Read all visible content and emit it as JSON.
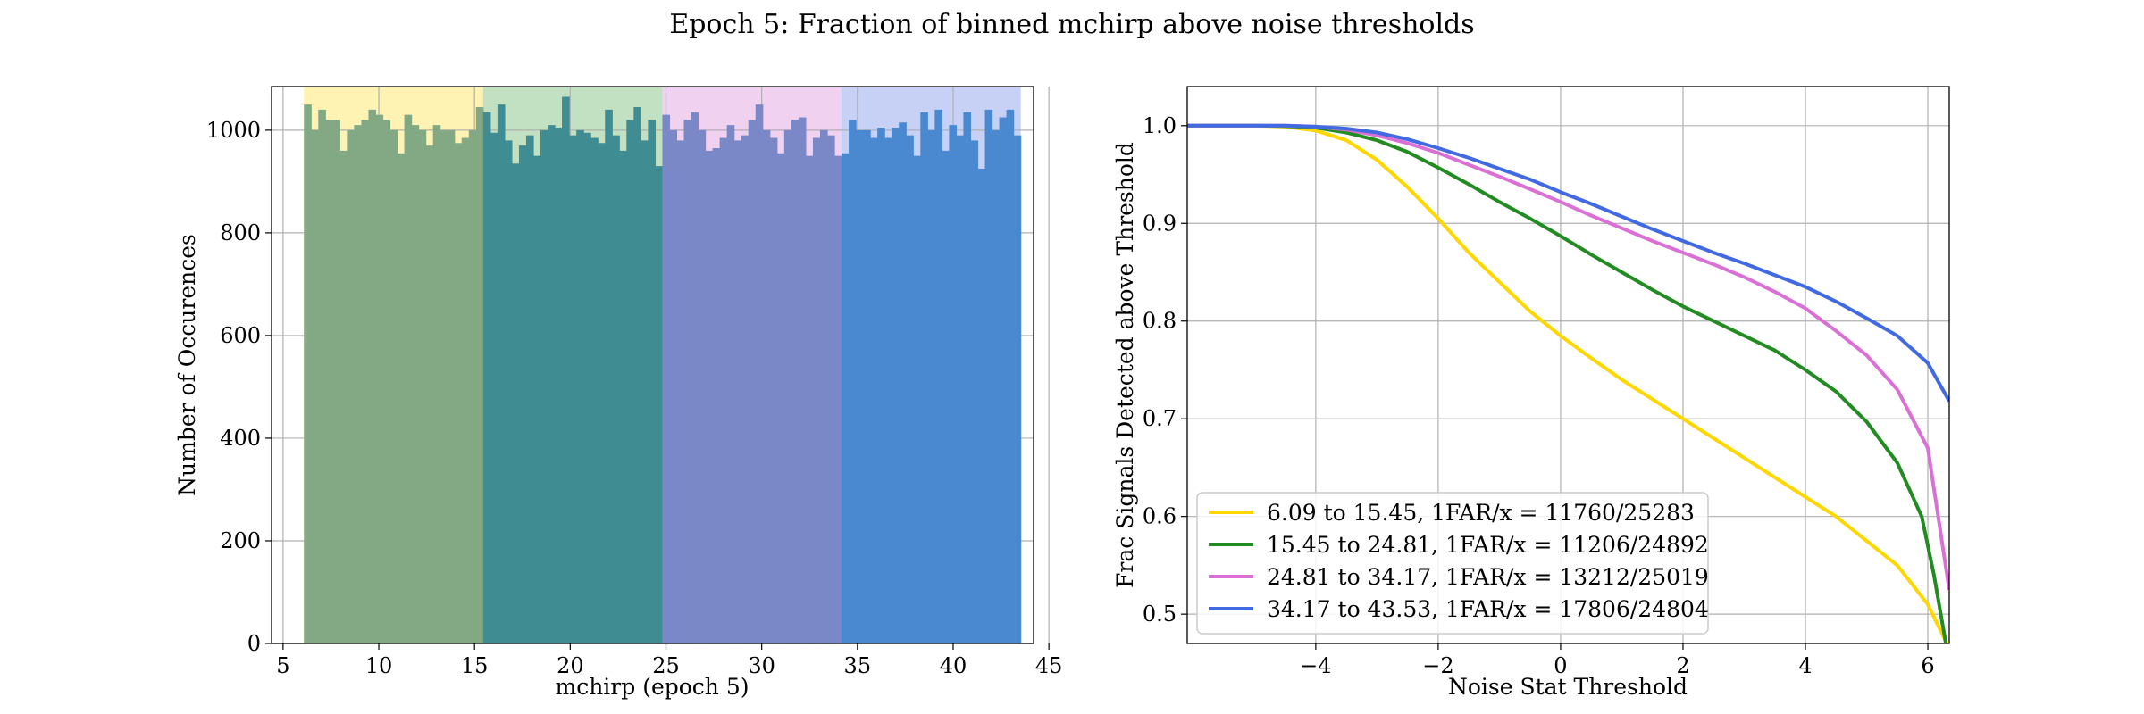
{
  "suptitle": "Epoch 5: Fraction of binned mchirp above noise thresholds",
  "chart_data": [
    {
      "type": "bar",
      "subtype": "histogram",
      "xlabel": "mchirp (epoch 5)",
      "ylabel": "Number of Occurences",
      "xlim": [
        4.4,
        44.2
      ],
      "ylim": [
        0,
        1085
      ],
      "xticks": [
        5,
        10,
        15,
        20,
        25,
        30,
        35,
        40,
        45
      ],
      "yticks": [
        0,
        200,
        400,
        600,
        800,
        1000
      ],
      "grid": true,
      "bin_start": 6.09,
      "bin_width": 0.3744,
      "bin_counts": [
        1050,
        1000,
        1040,
        1020,
        1020,
        960,
        1000,
        1010,
        1020,
        1040,
        1030,
        1020,
        1000,
        955,
        1030,
        1010,
        1000,
        970,
        1010,
        1000,
        1000,
        975,
        985,
        1000,
        1045,
        1035,
        995,
        1050,
        980,
        935,
        970,
        990,
        950,
        1000,
        1010,
        1005,
        1065,
        990,
        1000,
        995,
        985,
        975,
        1040,
        990,
        960,
        1020,
        1045,
        980,
        1020,
        930,
        1030,
        1000,
        980,
        1020,
        1035,
        1000,
        960,
        965,
        985,
        1010,
        980,
        990,
        1020,
        1050,
        1000,
        985,
        955,
        1000,
        1020,
        1025,
        950,
        985,
        1000,
        990,
        950,
        955,
        1020,
        1000,
        1000,
        985,
        1005,
        985,
        1005,
        1015,
        990,
        950,
        1035,
        1000,
        1040,
        960,
        1010,
        990,
        1035,
        980,
        925,
        1040,
        1000,
        1025,
        1040,
        990
      ],
      "groups": [
        {
          "range": [
            6.09,
            15.45
          ],
          "bar_color": "#82a884",
          "band_color": "#fff3b3"
        },
        {
          "range": [
            15.45,
            24.81
          ],
          "bar_color": "#3f8d92",
          "band_color": "#c2e0c2"
        },
        {
          "range": [
            24.81,
            34.17
          ],
          "bar_color": "#7a88c8",
          "band_color": "#f0d2f0"
        },
        {
          "range": [
            34.17,
            43.53
          ],
          "bar_color": "#4a88d0",
          "band_color": "#c7d1f5"
        }
      ]
    },
    {
      "type": "line",
      "xlabel": "Noise Stat Threshold",
      "ylabel": "Frac Signals Detected above Threshold",
      "xlim": [
        -6.1,
        6.35
      ],
      "ylim": [
        0.47,
        1.04
      ],
      "xticks": [
        -4,
        -2,
        0,
        2,
        4,
        6
      ],
      "yticks": [
        0.5,
        0.6,
        0.7,
        0.8,
        0.9,
        1.0
      ],
      "xtick_labels": [
        "−4",
        "−2",
        "0",
        "2",
        "4",
        "6"
      ],
      "ytick_labels": [
        "0.5",
        "0.6",
        "0.7",
        "0.8",
        "0.9",
        "1.0"
      ],
      "grid": true,
      "legend_position": "lower-left",
      "series": [
        {
          "name": "6.09 to 15.45, 1FAR/x = 11760/25283",
          "color": "#ffd700",
          "points": [
            [
              -6.1,
              1.0
            ],
            [
              -5,
              1.0
            ],
            [
              -4.5,
              0.999
            ],
            [
              -4,
              0.995
            ],
            [
              -3.5,
              0.985
            ],
            [
              -3,
              0.965
            ],
            [
              -2.5,
              0.937
            ],
            [
              -2,
              0.905
            ],
            [
              -1.5,
              0.87
            ],
            [
              -1,
              0.84
            ],
            [
              -0.5,
              0.81
            ],
            [
              0,
              0.785
            ],
            [
              0.5,
              0.762
            ],
            [
              1,
              0.74
            ],
            [
              1.5,
              0.72
            ],
            [
              2,
              0.7
            ],
            [
              2.5,
              0.68
            ],
            [
              3,
              0.66
            ],
            [
              3.5,
              0.64
            ],
            [
              4,
              0.62
            ],
            [
              4.5,
              0.6
            ],
            [
              5,
              0.575
            ],
            [
              5.5,
              0.55
            ],
            [
              6,
              0.51
            ],
            [
              6.35,
              0.465
            ]
          ]
        },
        {
          "name": "15.45 to 24.81, 1FAR/x = 11206/24892",
          "color": "#228b22",
          "points": [
            [
              -6.1,
              1.0
            ],
            [
              -5,
              1.0
            ],
            [
              -4.5,
              0.9995
            ],
            [
              -4,
              0.998
            ],
            [
              -3.5,
              0.993
            ],
            [
              -3,
              0.985
            ],
            [
              -2.5,
              0.973
            ],
            [
              -2,
              0.957
            ],
            [
              -1.5,
              0.94
            ],
            [
              -1,
              0.922
            ],
            [
              -0.5,
              0.905
            ],
            [
              0,
              0.887
            ],
            [
              0.5,
              0.868
            ],
            [
              1,
              0.85
            ],
            [
              1.5,
              0.832
            ],
            [
              2,
              0.815
            ],
            [
              2.5,
              0.8
            ],
            [
              3,
              0.785
            ],
            [
              3.5,
              0.77
            ],
            [
              4,
              0.75
            ],
            [
              4.5,
              0.728
            ],
            [
              5,
              0.697
            ],
            [
              5.5,
              0.655
            ],
            [
              5.9,
              0.6
            ],
            [
              6.1,
              0.54
            ],
            [
              6.35,
              0.45
            ]
          ]
        },
        {
          "name": "24.81 to 34.17, 1FAR/x = 13212/25019",
          "color": "#da70d6",
          "points": [
            [
              -6.1,
              1.0
            ],
            [
              -5,
              1.0
            ],
            [
              -4.5,
              1.0
            ],
            [
              -4,
              0.999
            ],
            [
              -3.5,
              0.996
            ],
            [
              -3,
              0.99
            ],
            [
              -2.5,
              0.982
            ],
            [
              -2,
              0.972
            ],
            [
              -1.5,
              0.96
            ],
            [
              -1,
              0.948
            ],
            [
              -0.5,
              0.935
            ],
            [
              0,
              0.922
            ],
            [
              0.5,
              0.908
            ],
            [
              1,
              0.895
            ],
            [
              1.5,
              0.882
            ],
            [
              2,
              0.87
            ],
            [
              2.5,
              0.858
            ],
            [
              3,
              0.845
            ],
            [
              3.5,
              0.83
            ],
            [
              4,
              0.813
            ],
            [
              4.5,
              0.79
            ],
            [
              5,
              0.765
            ],
            [
              5.5,
              0.73
            ],
            [
              6,
              0.67
            ],
            [
              6.35,
              0.525
            ]
          ]
        },
        {
          "name": "34.17 to 43.53, 1FAR/x = 17806/24804",
          "color": "#4169e1",
          "points": [
            [
              -6.1,
              1.0
            ],
            [
              -5,
              1.0
            ],
            [
              -4.5,
              1.0
            ],
            [
              -4,
              0.999
            ],
            [
              -3.5,
              0.997
            ],
            [
              -3,
              0.993
            ],
            [
              -2.5,
              0.986
            ],
            [
              -2,
              0.977
            ],
            [
              -1.5,
              0.967
            ],
            [
              -1,
              0.956
            ],
            [
              -0.5,
              0.945
            ],
            [
              0,
              0.932
            ],
            [
              0.5,
              0.92
            ],
            [
              1,
              0.907
            ],
            [
              1.5,
              0.894
            ],
            [
              2,
              0.882
            ],
            [
              2.5,
              0.87
            ],
            [
              3,
              0.859
            ],
            [
              3.5,
              0.847
            ],
            [
              4,
              0.835
            ],
            [
              4.5,
              0.82
            ],
            [
              5,
              0.803
            ],
            [
              5.5,
              0.785
            ],
            [
              6,
              0.757
            ],
            [
              6.35,
              0.718
            ]
          ]
        }
      ]
    }
  ]
}
